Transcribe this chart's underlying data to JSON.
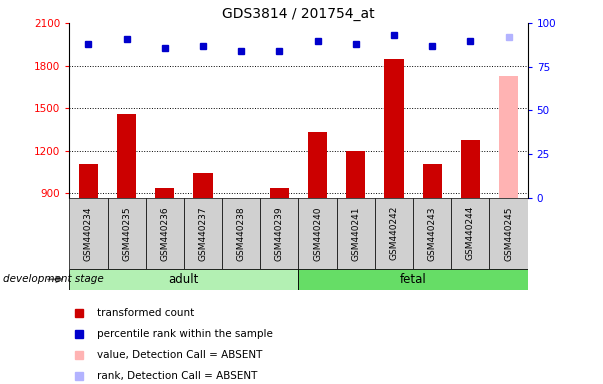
{
  "title": "GDS3814 / 201754_at",
  "samples": [
    "GSM440234",
    "GSM440235",
    "GSM440236",
    "GSM440237",
    "GSM440238",
    "GSM440239",
    "GSM440240",
    "GSM440241",
    "GSM440242",
    "GSM440243",
    "GSM440244",
    "GSM440245"
  ],
  "bar_values": [
    1110,
    1460,
    940,
    1045,
    870,
    940,
    1330,
    1200,
    1850,
    1110,
    1280,
    1730
  ],
  "bar_absent": [
    false,
    false,
    false,
    false,
    false,
    false,
    false,
    false,
    false,
    false,
    false,
    true
  ],
  "percentile_ranks": [
    88,
    91,
    86,
    87,
    84,
    84,
    90,
    88,
    93,
    87,
    90,
    92
  ],
  "rank_absent": [
    false,
    false,
    false,
    false,
    false,
    false,
    false,
    false,
    false,
    false,
    false,
    true
  ],
  "bar_color_present": "#cc0000",
  "bar_color_absent": "#ffb3b3",
  "rank_color_present": "#0000cc",
  "rank_color_absent": "#b3b3ff",
  "ylim_left": [
    870,
    2100
  ],
  "ylim_right": [
    0,
    100
  ],
  "yticks_left": [
    900,
    1200,
    1500,
    1800,
    2100
  ],
  "yticks_right": [
    0,
    25,
    50,
    75,
    100
  ],
  "groups": [
    {
      "label": "adult",
      "start": 0,
      "end": 5,
      "color": "#b3f0b3"
    },
    {
      "label": "fetal",
      "start": 6,
      "end": 11,
      "color": "#66dd66"
    }
  ],
  "legend_items": [
    {
      "label": "transformed count",
      "color": "#cc0000"
    },
    {
      "label": "percentile rank within the sample",
      "color": "#0000cc"
    },
    {
      "label": "value, Detection Call = ABSENT",
      "color": "#ffb3b3"
    },
    {
      "label": "rank, Detection Call = ABSENT",
      "color": "#b3b3ff"
    }
  ],
  "development_stage_label": "development stage",
  "bar_width": 0.5
}
